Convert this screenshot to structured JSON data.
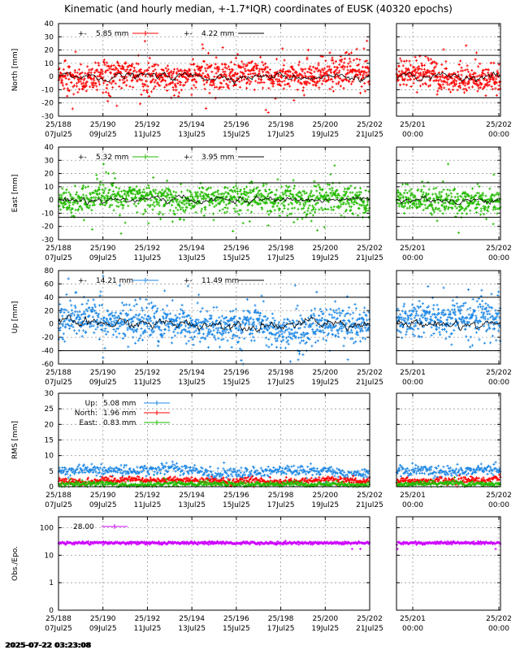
{
  "figure": {
    "title": "Kinematic (and hourly median, +-1.7*IQR) coordinates of EUSK (40320 epochs)",
    "timestamp": "2025-07-22 03:23:08"
  },
  "colors": {
    "north": "#ff0000",
    "east": "#22bb00",
    "up": "#1e88e5",
    "obs": "#cc00ff",
    "median": "#000000",
    "grid": "#999999"
  },
  "x_ticks_main": {
    "top": [
      "25/188",
      "25/190",
      "25/192",
      "25/194",
      "25/196",
      "25/198",
      "25/200",
      "25/202"
    ],
    "bottom": [
      "07Jul25",
      "09Jul25",
      "11Jul25",
      "13Jul25",
      "15Jul25",
      "17Jul25",
      "19Jul25",
      "21Jul25"
    ]
  },
  "x_ticks_zoom": {
    "top": [
      "25/201",
      "25/202"
    ],
    "bottom": [
      "00:00",
      "00:00"
    ]
  },
  "chart_data": [
    {
      "type": "scatter",
      "id": "north",
      "ylabel": "North [mm]",
      "ylim": [
        -30,
        40
      ],
      "yticks": [
        -30,
        -20,
        -10,
        0,
        10,
        20,
        30,
        40
      ],
      "grid": true,
      "threshold": 16,
      "series": [
        {
          "name": "5.85 mm",
          "role": "kinematic",
          "std": 5.85
        },
        {
          "name": "4.22 mm",
          "role": "median",
          "std": 4.22
        }
      ],
      "legend": [
        {
          "prefix": "+-",
          "value": "5.85 mm"
        },
        {
          "prefix": "+-",
          "value": "4.22 mm"
        }
      ]
    },
    {
      "type": "scatter",
      "id": "east",
      "ylabel": "East [mm]",
      "ylim": [
        -30,
        40
      ],
      "yticks": [
        -30,
        -20,
        -10,
        0,
        10,
        20,
        30,
        40
      ],
      "grid": true,
      "threshold": 13,
      "series": [
        {
          "name": "5.32 mm",
          "role": "kinematic",
          "std": 5.32
        },
        {
          "name": "3.95 mm",
          "role": "median",
          "std": 3.95
        }
      ],
      "legend": [
        {
          "prefix": "+-",
          "value": "5.32 mm"
        },
        {
          "prefix": "+-",
          "value": "3.95 mm"
        }
      ]
    },
    {
      "type": "scatter",
      "id": "up",
      "ylabel": "Up [mm]",
      "ylim": [
        -60,
        80
      ],
      "yticks": [
        -60,
        -40,
        -20,
        0,
        20,
        40,
        60,
        80
      ],
      "grid": true,
      "threshold": 40,
      "series": [
        {
          "name": "14.21 mm",
          "role": "kinematic",
          "std": 14.21
        },
        {
          "name": "11.49 mm",
          "role": "median",
          "std": 11.49
        }
      ],
      "legend": [
        {
          "prefix": "+-",
          "value": "14.21 mm"
        },
        {
          "prefix": "+-",
          "value": "11.49 mm"
        }
      ]
    },
    {
      "type": "scatter",
      "id": "rms",
      "ylabel": "RMS [mm]",
      "ylim": [
        0,
        30
      ],
      "yticks": [
        0,
        5,
        10,
        15,
        20,
        25,
        30
      ],
      "grid": true,
      "series": [
        {
          "name": "Up:",
          "value": "5.08 mm",
          "mean": 5.08
        },
        {
          "name": "North:",
          "value": "1.96 mm",
          "mean": 1.96
        },
        {
          "name": "East:",
          "value": "0.83 mm",
          "mean": 0.83
        }
      ]
    },
    {
      "type": "scatter",
      "id": "obs",
      "ylabel": "Obs./Epo.",
      "yscale": "log",
      "yticks": [
        "0",
        "1",
        "10",
        "100"
      ],
      "grid": true,
      "series": [
        {
          "name": "28.00",
          "mean": 28.0
        }
      ]
    }
  ]
}
